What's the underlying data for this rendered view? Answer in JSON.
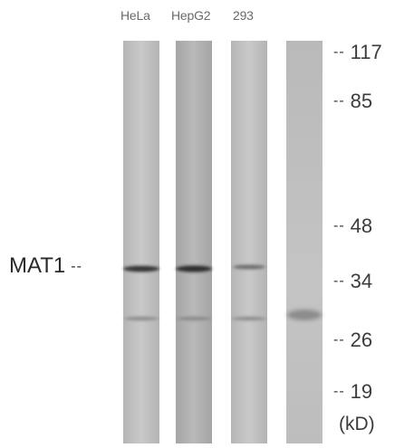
{
  "lanes": {
    "hela": "HeLa",
    "hepg2": "HepG2",
    "h293": "293"
  },
  "protein": {
    "label": "MAT1",
    "dash": "--"
  },
  "markers": {
    "m117": "117",
    "m85": "85",
    "m48": "48",
    "m34": "34",
    "m26": "26",
    "m19": "19",
    "dash": "--"
  },
  "unit": "(kD)",
  "colors": {
    "lane_base": "#bdbdbd",
    "lane_dark": "#a8a8a8",
    "band": "#3a3a3a"
  }
}
